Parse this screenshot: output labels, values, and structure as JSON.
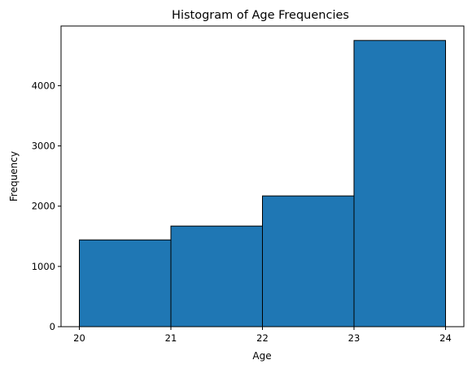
{
  "chart_data": {
    "type": "bar",
    "title": "Histogram of Age Frequencies",
    "xlabel": "Age",
    "ylabel": "Frequency",
    "bins": [
      {
        "start": 20,
        "end": 21,
        "value": 1440
      },
      {
        "start": 21,
        "end": 22,
        "value": 1670
      },
      {
        "start": 22,
        "end": 23,
        "value": 2170
      },
      {
        "start": 23,
        "end": 24,
        "value": 4750
      }
    ],
    "xlim": [
      19.8,
      24.2
    ],
    "ylim": [
      0,
      4990
    ],
    "xticks": [
      20,
      21,
      22,
      23,
      24
    ],
    "yticks": [
      0,
      1000,
      2000,
      3000,
      4000
    ],
    "bar_color": "#1f77b4",
    "edge_color": "#000000",
    "grid": false,
    "legend": "none"
  }
}
